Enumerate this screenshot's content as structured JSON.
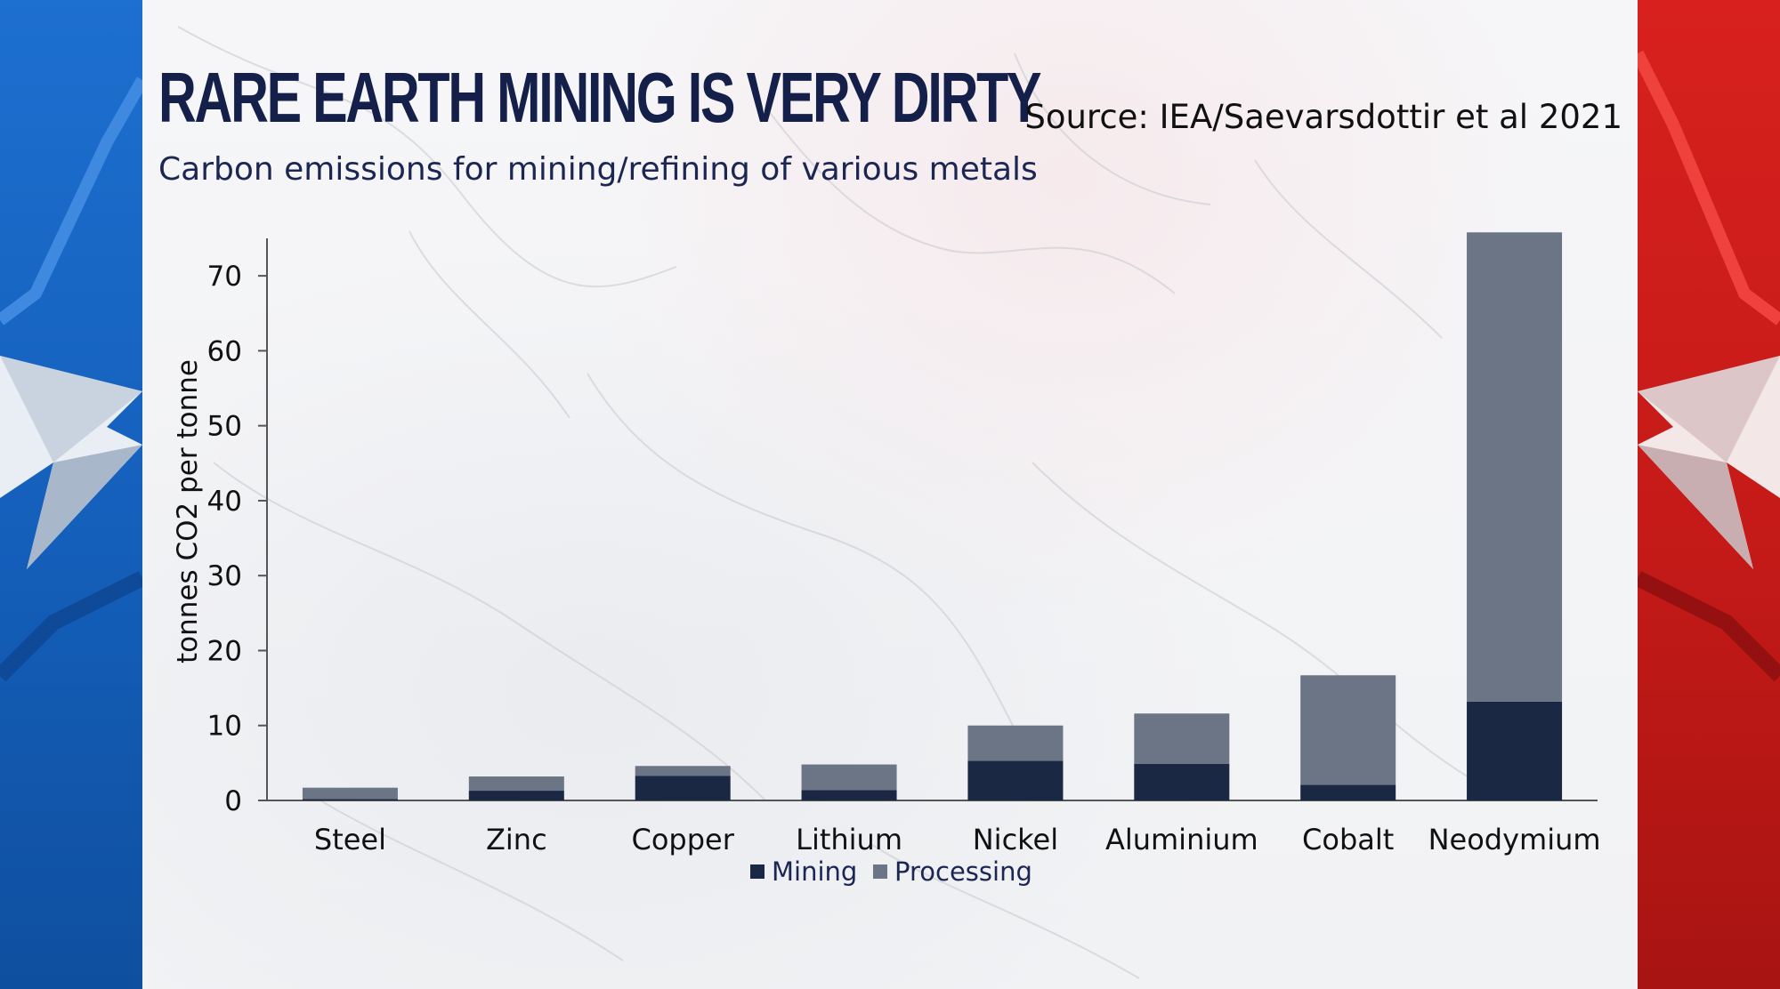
{
  "title": "RARE EARTH MINING IS VERY DIRTY",
  "subtitle": "Carbon emissions for mining/refining of various metals",
  "source": "Source: IEA/Saevarsdottir et al 2021",
  "colors": {
    "mining": "#1b2844",
    "processing": "#6b7585",
    "title": "#14204a",
    "left_panel": "#1565c7",
    "right_panel": "#d31f1c"
  },
  "chart_data": {
    "type": "bar",
    "stacked": true,
    "categories": [
      "Steel",
      "Zinc",
      "Copper",
      "Lithium",
      "Nickel",
      "Aluminium",
      "Cobalt",
      "Neodymium"
    ],
    "series": [
      {
        "name": "Mining",
        "values": [
          0.2,
          1.3,
          3.3,
          1.4,
          5.3,
          4.9,
          2.1,
          13.2
        ]
      },
      {
        "name": "Processing",
        "values": [
          1.5,
          1.9,
          1.3,
          3.4,
          4.7,
          6.7,
          14.6,
          62.6
        ]
      }
    ],
    "ylabel": "tonnes CO2 per tonne",
    "ylim": [
      0,
      75
    ],
    "yticks": [
      0,
      10,
      20,
      30,
      40,
      50,
      60,
      70
    ],
    "legend": "bottom",
    "grid": false
  }
}
